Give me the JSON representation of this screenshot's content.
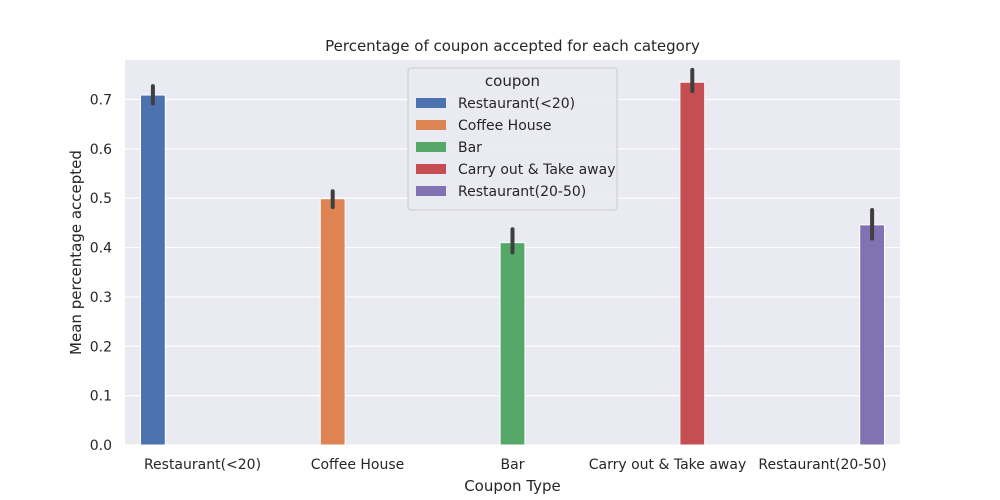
{
  "chart_data": {
    "type": "bar",
    "title": "Percentage of coupon accepted for each category",
    "xlabel": "Coupon Type",
    "ylabel": "Mean percentage accepted",
    "ylim": [
      0,
      0.78
    ],
    "yticks": [
      "0.0",
      "0.1",
      "0.2",
      "0.3",
      "0.4",
      "0.5",
      "0.6",
      "0.7"
    ],
    "grid": true,
    "legend_position": "top-center",
    "legend_title": "coupon",
    "categories": [
      "Restaurant(<20)",
      "Coffee House",
      "Bar",
      "Carry out & Take away",
      "Restaurant(20-50)"
    ],
    "series": [
      {
        "name": "Restaurant(<20)",
        "color": "#4c72b0",
        "values": [
          0.709,
          null,
          null,
          null,
          null
        ],
        "ci": [
          [
            0.692,
            0.727
          ],
          null,
          null,
          null,
          null
        ]
      },
      {
        "name": "Coffee House",
        "color": "#dd8452",
        "values": [
          null,
          0.499,
          null,
          null,
          null
        ],
        "ci": [
          null,
          [
            0.482,
            0.514
          ],
          null,
          null,
          null
        ]
      },
      {
        "name": "Bar",
        "color": "#55a868",
        "values": [
          null,
          null,
          0.41,
          null,
          null
        ],
        "ci": [
          null,
          null,
          [
            0.39,
            0.437
          ],
          null,
          null
        ]
      },
      {
        "name": "Carry out & Take away",
        "color": "#c44e52",
        "values": [
          null,
          null,
          null,
          0.735,
          null
        ],
        "ci": [
          null,
          null,
          null,
          [
            0.717,
            0.76
          ],
          null
        ]
      },
      {
        "name": "Restaurant(20-50)",
        "color": "#8172b3",
        "values": [
          null,
          null,
          null,
          null,
          0.446
        ],
        "ci": [
          null,
          null,
          null,
          null,
          [
            0.418,
            0.476
          ]
        ]
      }
    ]
  }
}
